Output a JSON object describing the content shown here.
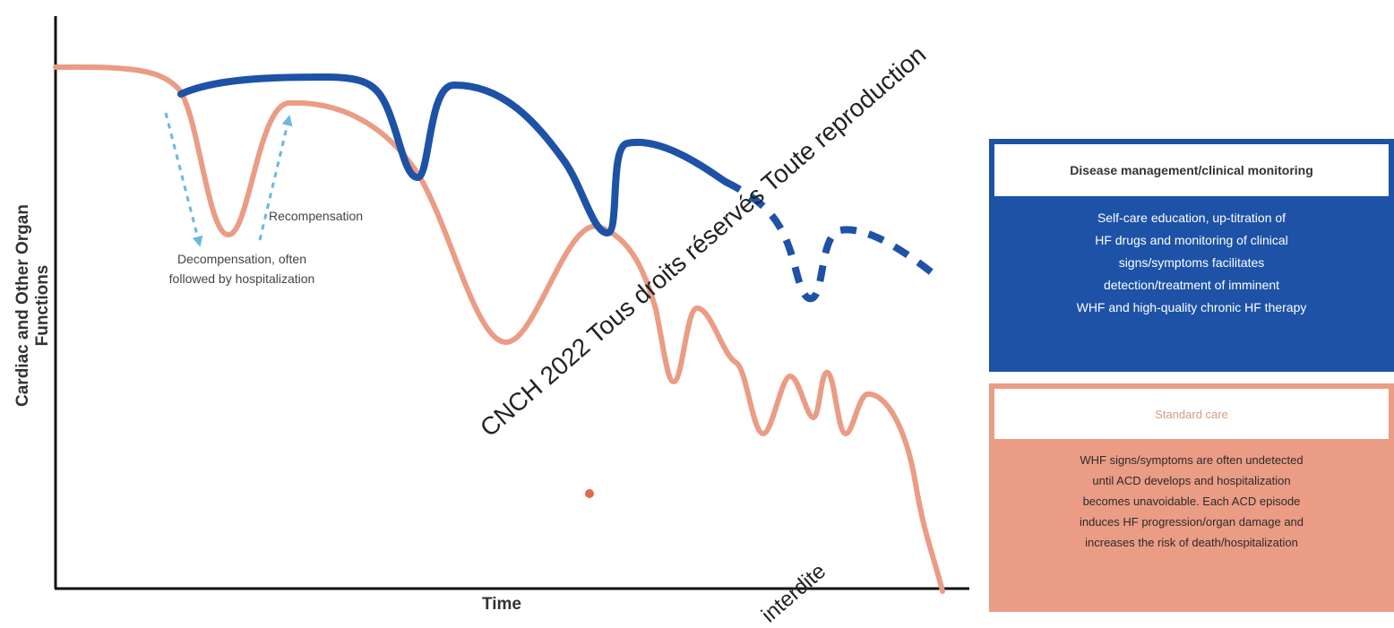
{
  "diagram": {
    "y_axis_label": "Cardiac and Other Organ Functions",
    "x_axis_label": "Time",
    "annotations": {
      "decompensation": [
        "Decompensation, often",
        "followed by hospitalization"
      ],
      "recompensation": "Recompensation"
    },
    "colors": {
      "disease_management": "#1d52a7",
      "standard_care": "#eb9c85",
      "arrow": "#6bb7e3"
    }
  },
  "watermark": {
    "main": "CNCH 2022 Tous droits réservés Toute reproduction",
    "fragment": "interdite"
  },
  "panels": {
    "disease_management": {
      "title": "Disease management/clinical monitoring",
      "body": [
        "Self-care education, up-titration of",
        "HF drugs and monitoring of clinical",
        "signs/symptoms facilitates",
        "detection/treatment of imminent",
        "WHF and high-quality chronic HF therapy"
      ]
    },
    "standard_care": {
      "title": "Standard care",
      "body": [
        "WHF signs/symptoms are often undetected",
        "until ACD develops and hospitalization",
        "becomes unavoidable. Each ACD episode",
        "induces HF progression/organ damage and",
        "increases the risk of death/hospitalization"
      ]
    }
  }
}
